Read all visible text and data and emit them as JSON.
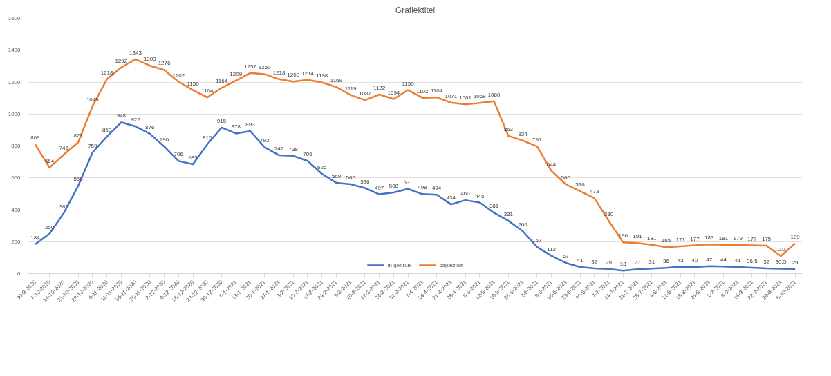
{
  "chart_data": {
    "type": "line",
    "title": "Grafiektitel",
    "categories": [
      "30-9-2020",
      "7-10-2020",
      "14-10-2020",
      "21-10-2020",
      "28-10-2020",
      "4-11-2020",
      "11-11-2020",
      "18-11-2020",
      "25-11-2020",
      "2-12-2020",
      "9-12-2020",
      "16-12-2020",
      "23-12-2020",
      "30-12-2020",
      "6-1-2021",
      "13-1-2021",
      "20-1-2021",
      "27-1-2021",
      "3-2-2021",
      "10-2-2021",
      "17-2-2021",
      "24-2-2021",
      "3-3-2021",
      "10-3-2021",
      "17-3-2021",
      "24-3-2021",
      "31-3-2021",
      "7-4-2021",
      "14-4-2021",
      "21-4-2021",
      "28-4-2021",
      "5-5-2021",
      "12-5-2021",
      "19-5-2021",
      "26-5-2021",
      "2-6-2021",
      "9-6-2021",
      "16-6-2021",
      "23-6-2021",
      "30-6-2021",
      "7-7-2021",
      "14-7-2021",
      "21-7-2021",
      "28-7-2021",
      "4-8-2021",
      "11-8-2021",
      "18-8-2021",
      "25-8-2021",
      "1-9-2021",
      "8-9-2021",
      "15-9-2021",
      "22-9-2021",
      "29-9-2021",
      "6-10-2021"
    ],
    "series": [
      {
        "name": "in gebruik",
        "color": "#4472c4",
        "values": [
          184,
          250,
          380,
          550,
          759,
          858,
          948,
          922,
          876,
          796,
          706,
          685,
          810,
          915,
          878,
          893,
          792,
          742,
          738,
          706,
          625,
          569,
          560,
          536,
          497,
          508,
          531,
          498,
          494,
          434,
          460,
          445,
          381,
          331,
          266,
          167,
          112,
          67,
          41,
          32,
          29,
          18,
          27,
          31,
          36,
          43,
          40,
          47,
          44,
          41,
          36.5,
          32,
          30.5,
          29
        ],
        "value_labels": [
          "184",
          "250",
          "380",
          "550",
          "759",
          "858",
          "948",
          "922",
          "876",
          "796",
          "706",
          "685",
          "810",
          "915",
          "878",
          "893",
          "792",
          "742",
          "738",
          "706",
          "625",
          "569",
          "560",
          "536",
          "497",
          "508",
          "531",
          "498",
          "494",
          "434",
          "460",
          "445",
          "381",
          "331",
          "266",
          "167",
          "112",
          "67",
          "41",
          "32",
          "29",
          "18",
          "27",
          "31",
          "36",
          "43",
          "40",
          "47",
          "44",
          "41",
          "36,5",
          "32",
          "30,5",
          "29"
        ]
      },
      {
        "name": "capaciteit",
        "color": "#ed7d31",
        "values": [
          809,
          664,
          746,
          823,
          1049,
          1218,
          1292,
          1343,
          1303,
          1276,
          1202,
          1150,
          1104,
          1164,
          1209,
          1257,
          1250,
          1218,
          1203,
          1214,
          1198,
          1169,
          1119,
          1087,
          1122,
          1094,
          1150,
          1102,
          1104,
          1071,
          1061,
          1069,
          1080,
          863,
          834,
          797,
          644,
          560,
          516,
          473,
          330,
          196,
          191,
          181,
          165,
          171,
          177,
          183,
          181,
          179,
          177,
          175,
          110,
          189
        ],
        "value_labels": [
          "809",
          "664",
          "746",
          "823",
          "1049",
          "1218",
          "1292",
          "1343",
          "1303",
          "1276",
          "1202",
          "1150",
          "1104",
          "1164",
          "1209",
          "1257",
          "1250",
          "1218",
          "1203",
          "1214",
          "1198",
          "1169",
          "1119",
          "1087",
          "1122",
          "1094",
          "1150",
          "1102",
          "1104",
          "1071",
          "1061",
          "1069",
          "1080",
          "863",
          "834",
          "797",
          "644",
          "560",
          "516",
          "473",
          "330",
          "196",
          "191",
          "181",
          "165",
          "171",
          "177",
          "183",
          "181",
          "179",
          "177",
          "175",
          "110",
          "189"
        ]
      }
    ],
    "ylim": [
      0,
      1600
    ],
    "yticks": [
      0,
      200,
      400,
      600,
      800,
      1000,
      1200,
      1400,
      1600
    ],
    "grid": "y",
    "legend": "bottom",
    "marker": "none",
    "line_style": "solid"
  }
}
